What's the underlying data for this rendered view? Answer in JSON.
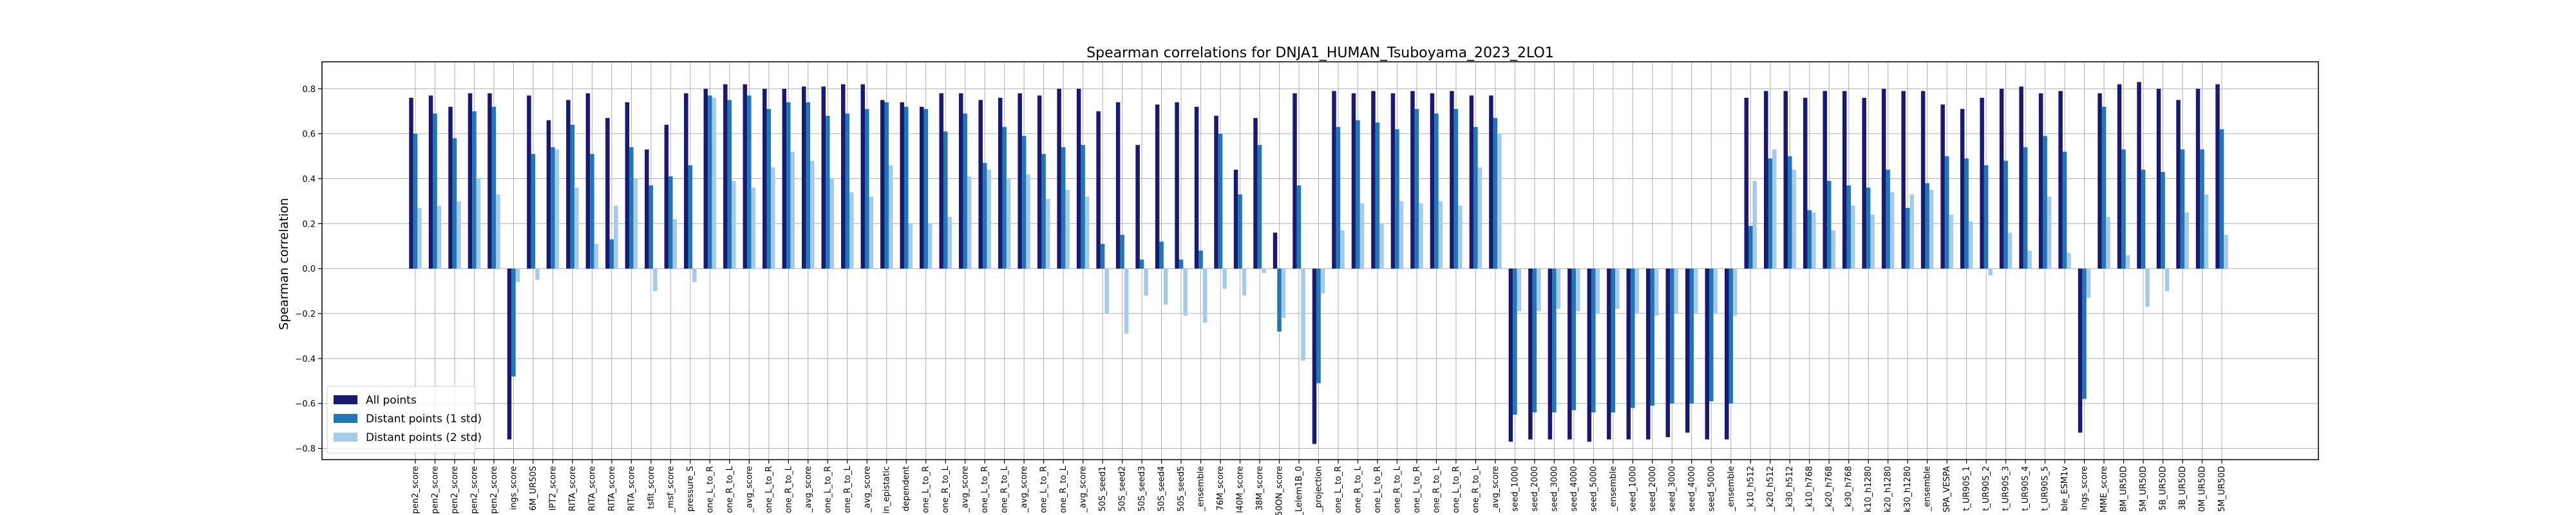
{
  "chart_data": {
    "type": "bar",
    "title": "Spearman correlations for DNJA1_HUMAN_Tsuboyama_2023_2LO1",
    "xlabel": "",
    "ylabel": "Spearman correlation",
    "ylim": [
      -0.85,
      0.92
    ],
    "yticks": [
      -0.8,
      -0.6,
      -0.4,
      -0.2,
      0.0,
      0.2,
      0.4,
      0.6,
      0.8
    ],
    "ytick_labels": [
      "−0.8",
      "−0.6",
      "−0.4",
      "−0.2",
      "0.0",
      "0.2",
      "0.4",
      "0.6",
      "0.8"
    ],
    "grid": true,
    "legend_position": "lower-left",
    "categories": [
      "pen2_score",
      "pen2_score",
      "pen2_score",
      "pen2_score",
      "pen2_score",
      "ings_score",
      "6M_UR50S",
      "IPT2_score",
      "RITA_score",
      "RITA_score",
      "RITA_score",
      "RITA_score",
      "tsfit_score",
      "_msf_score",
      "pressure_S",
      "one_L_to_R",
      "one_R_to_L",
      "_avg_score",
      "one_L_to_R",
      "one_R_to_L",
      "_avg_score",
      "one_L_to_R",
      "one_R_to_L",
      "_avg_score",
      "in_epistatic",
      "dependent",
      "one_L_to_R",
      "one_R_to_L",
      "_avg_score",
      "one_L_to_R",
      "one_R_to_L",
      "_avg_score",
      "one_L_to_R",
      "one_R_to_L",
      "_avg_score",
      "50S_seed1",
      "50S_seed2",
      "50S_seed3",
      "50S_seed4",
      "50S_seed5",
      "_ensemble",
      "76M_score",
      "l40M_score",
      "38M_score",
      "50ON_score",
      "_Lelem1B_0",
      "_projection",
      "one_L_to_R",
      "one_R_to_L",
      "one_L_to_R",
      "one_R_to_L",
      "one_L_to_R",
      "one_R_to_L",
      "one_L_to_R",
      "one_R_to_L",
      "_avg_score",
      "seed_1000",
      "seed_2000",
      "seed_3000",
      "seed_4000",
      "seed_5000",
      "_ensemble",
      "seed_1000",
      "seed_2000",
      "seed_3000",
      "seed_4000",
      "seed_5000",
      "_ensemble",
      "_k10_h512",
      "_k20_h512",
      "_k30_h512",
      "_k10_h768",
      "_k20_h768",
      "_k30_h768",
      "k10_h1280",
      "k20_h1280",
      "k30_h1280",
      "_ensemble",
      "SPA_VESPA",
      "t_UR90S_1",
      "t_UR90S_2",
      "t_UR90S_3",
      "t_UR90S_4",
      "t_UR90S_5",
      "ble_ESM1v",
      "ings_score",
      "MME_score",
      "8M_UR50D",
      "5M_UR50D",
      "5B_UR50D",
      "3B_UR50D",
      "0M_UR50D",
      "5M_UR50D"
    ],
    "series": [
      {
        "name": "All points",
        "color": "#191970",
        "values": [
          0.76,
          0.77,
          0.72,
          0.78,
          0.78,
          -0.76,
          0.77,
          0.66,
          0.75,
          0.78,
          0.67,
          0.74,
          0.53,
          0.64,
          0.78,
          0.8,
          0.82,
          0.82,
          0.8,
          0.8,
          0.81,
          0.81,
          0.82,
          0.82,
          0.75,
          0.74,
          0.72,
          0.78,
          0.78,
          0.75,
          0.76,
          0.78,
          0.77,
          0.8,
          0.8,
          0.7,
          0.74,
          0.55,
          0.73,
          0.74,
          0.72,
          0.68,
          0.44,
          0.67,
          0.16,
          0.78,
          -0.78,
          0.79,
          0.78,
          0.79,
          0.78,
          0.79,
          0.78,
          0.79,
          0.77,
          0.77,
          -0.77,
          -0.76,
          -0.76,
          -0.76,
          -0.77,
          -0.76,
          -0.76,
          -0.76,
          -0.75,
          -0.73,
          -0.76,
          -0.76,
          0.76,
          0.79,
          0.79,
          0.76,
          0.79,
          0.79,
          0.76,
          0.8,
          0.79,
          0.79,
          0.73,
          0.71,
          0.76,
          0.8,
          0.81,
          0.78,
          0.79,
          -0.73,
          0.78,
          0.82,
          0.83,
          0.8,
          0.75,
          0.8,
          0.82
        ]
      },
      {
        "name": "Distant points (1 std)",
        "color": "#1f77b4",
        "values": [
          0.6,
          0.69,
          0.58,
          0.7,
          0.72,
          -0.48,
          0.51,
          0.54,
          0.64,
          0.51,
          0.13,
          0.54,
          0.37,
          0.41,
          0.46,
          0.77,
          0.75,
          0.77,
          0.71,
          0.74,
          0.74,
          0.68,
          0.69,
          0.71,
          0.74,
          0.72,
          0.71,
          0.61,
          0.69,
          0.47,
          0.63,
          0.59,
          0.51,
          0.54,
          0.55,
          0.11,
          0.15,
          0.04,
          0.12,
          0.04,
          0.08,
          0.6,
          0.33,
          0.55,
          -0.28,
          0.37,
          -0.51,
          0.63,
          0.66,
          0.65,
          0.62,
          0.71,
          0.69,
          0.71,
          0.63,
          0.67,
          -0.65,
          -0.64,
          -0.64,
          -0.63,
          -0.64,
          -0.64,
          -0.62,
          -0.61,
          -0.6,
          -0.6,
          -0.59,
          -0.6,
          0.19,
          0.49,
          0.5,
          0.26,
          0.39,
          0.37,
          0.36,
          0.44,
          0.27,
          0.38,
          0.5,
          0.49,
          0.46,
          0.48,
          0.54,
          0.59,
          0.52,
          -0.58,
          0.72,
          0.53,
          0.44,
          0.43,
          0.53,
          0.53,
          0.62
        ]
      },
      {
        "name": "Distant points (2 std)",
        "color": "#a6cbe8",
        "values": [
          0.27,
          0.28,
          0.3,
          0.4,
          0.33,
          -0.06,
          -0.05,
          0.53,
          0.36,
          0.11,
          0.28,
          0.4,
          -0.1,
          0.22,
          -0.06,
          0.76,
          0.39,
          0.36,
          0.45,
          0.52,
          0.48,
          0.4,
          0.34,
          0.32,
          0.46,
          0.2,
          0.2,
          0.23,
          0.41,
          0.44,
          0.4,
          0.42,
          0.31,
          0.35,
          0.32,
          -0.2,
          -0.29,
          -0.12,
          -0.16,
          -0.21,
          -0.24,
          -0.09,
          -0.12,
          -0.02,
          -0.22,
          -0.41,
          -0.11,
          0.17,
          0.29,
          0.2,
          0.3,
          0.29,
          0.3,
          0.28,
          0.45,
          0.6,
          -0.19,
          -0.19,
          -0.18,
          -0.19,
          -0.2,
          -0.18,
          -0.2,
          -0.21,
          -0.2,
          -0.2,
          -0.2,
          -0.21,
          0.39,
          0.53,
          0.44,
          0.25,
          0.17,
          0.28,
          0.24,
          0.34,
          0.33,
          0.35,
          0.24,
          0.21,
          -0.03,
          0.16,
          0.08,
          0.32,
          0.07,
          -0.13,
          0.23,
          0.06,
          -0.17,
          -0.1,
          0.25,
          0.33,
          0.15
        ]
      }
    ]
  }
}
